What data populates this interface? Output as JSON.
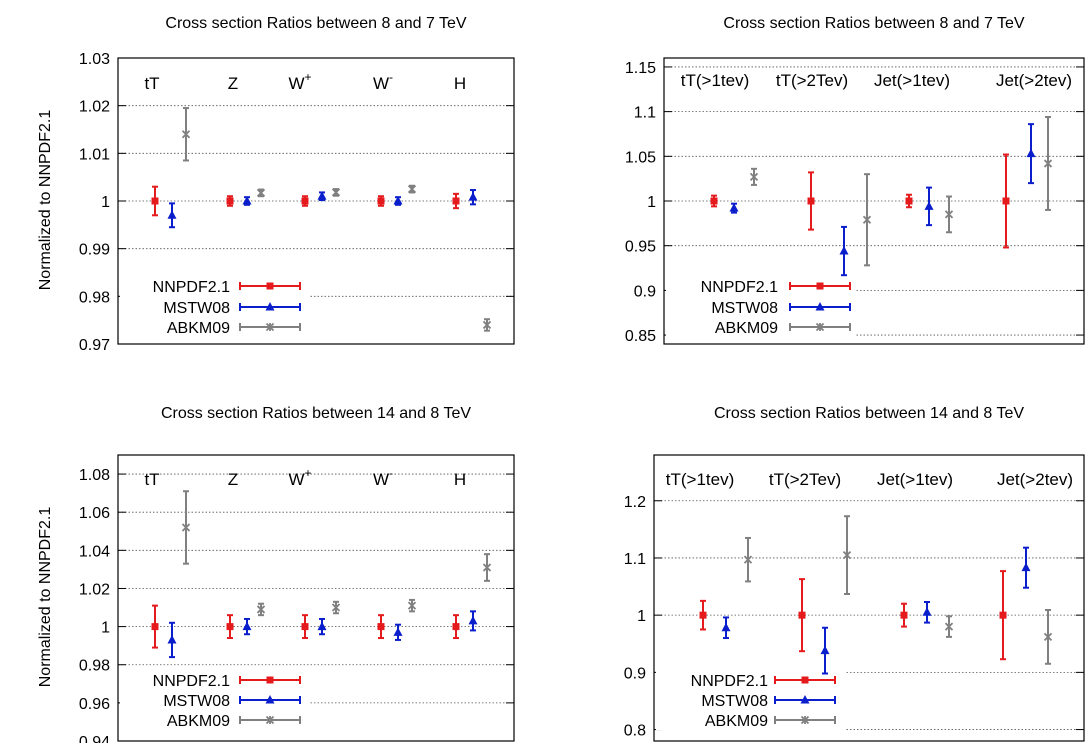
{
  "ylabel": "Normalized to NNPDF2.1",
  "series_style": [
    {
      "name": "NNPDF2.1",
      "color": "#e41a1c",
      "marker": "square"
    },
    {
      "name": "MSTW08",
      "color": "#0a1ecc",
      "marker": "triangle"
    },
    {
      "name": "ABKM09",
      "color": "#808080",
      "marker": "cross"
    }
  ],
  "chart_data": [
    {
      "type": "scatter",
      "title": "Cross section Ratios between 8 and 7 TeV",
      "ylim": [
        0.97,
        1.03
      ],
      "yticks": [
        "0.97",
        "0.98",
        "0.99",
        "1",
        "1.01",
        "1.02",
        "1.03"
      ],
      "grid": true,
      "legend": "bottom-left",
      "categories": [
        {
          "label": "tT",
          "sup": ""
        },
        {
          "label": "Z",
          "sup": ""
        },
        {
          "label": "W",
          "sup": "+"
        },
        {
          "label": "W",
          "sup": "-"
        },
        {
          "label": "H",
          "sup": ""
        }
      ],
      "series": [
        {
          "name": "NNPDF2.1",
          "values": [
            1.0,
            1.0,
            1.0,
            1.0,
            1.0
          ],
          "errors": [
            0.003,
            0.001,
            0.001,
            0.001,
            0.0015
          ]
        },
        {
          "name": "MSTW08",
          "values": [
            0.997,
            1.0,
            1.001,
            1.0,
            1.0008
          ],
          "errors": [
            0.0025,
            0.0008,
            0.0008,
            0.0008,
            0.0015
          ]
        },
        {
          "name": "ABKM09",
          "values": [
            1.014,
            1.0017,
            1.0018,
            1.0025,
            0.974
          ],
          "errors": [
            0.0055,
            0.0007,
            0.0007,
            0.0007,
            0.0012
          ]
        }
      ]
    },
    {
      "type": "scatter",
      "title": "Cross section Ratios between 8 and 7 TeV",
      "ylim": [
        0.84,
        1.16
      ],
      "yticks": [
        "0.85",
        "0.9",
        "0.95",
        "1",
        "1.05",
        "1.1",
        "1.15"
      ],
      "grid": true,
      "legend": "bottom-left",
      "categories": [
        {
          "label": "tT(>1tev)",
          "sup": ""
        },
        {
          "label": "tT(>2Tev)",
          "sup": ""
        },
        {
          "label": "Jet(>1tev)",
          "sup": ""
        },
        {
          "label": "Jet(>2tev)",
          "sup": ""
        }
      ],
      "series": [
        {
          "name": "NNPDF2.1",
          "values": [
            1.0,
            1.0,
            1.0,
            1.0
          ],
          "errors": [
            0.006,
            0.032,
            0.007,
            0.052
          ]
        },
        {
          "name": "MSTW08",
          "values": [
            0.992,
            0.944,
            0.994,
            1.053
          ],
          "errors": [
            0.005,
            0.027,
            0.021,
            0.033
          ]
        },
        {
          "name": "ABKM09",
          "values": [
            1.027,
            0.979,
            0.985,
            1.042
          ],
          "errors": [
            0.009,
            0.051,
            0.02,
            0.052
          ]
        }
      ]
    },
    {
      "type": "scatter",
      "title": "Cross section Ratios between 14 and 8 TeV",
      "ylim": [
        0.94,
        1.09
      ],
      "yticks": [
        "0.94",
        "0.96",
        "0.98",
        "1",
        "1.02",
        "1.04",
        "1.06",
        "1.08"
      ],
      "grid": true,
      "legend": "bottom-left",
      "categories": [
        {
          "label": "tT",
          "sup": ""
        },
        {
          "label": "Z",
          "sup": ""
        },
        {
          "label": "W",
          "sup": "+"
        },
        {
          "label": "W",
          "sup": "-"
        },
        {
          "label": "H",
          "sup": ""
        }
      ],
      "series": [
        {
          "name": "NNPDF2.1",
          "values": [
            1.0,
            1.0,
            1.0,
            1.0,
            1.0
          ],
          "errors": [
            0.011,
            0.006,
            0.006,
            0.006,
            0.006
          ]
        },
        {
          "name": "MSTW08",
          "values": [
            0.993,
            1.0,
            1.0,
            0.997,
            1.003
          ],
          "errors": [
            0.009,
            0.004,
            0.004,
            0.004,
            0.005
          ]
        },
        {
          "name": "ABKM09",
          "values": [
            1.052,
            1.009,
            1.01,
            1.011,
            1.031
          ],
          "errors": [
            0.019,
            0.003,
            0.003,
            0.003,
            0.007
          ]
        }
      ]
    },
    {
      "type": "scatter",
      "title": "Cross section Ratios between 14 and 8 TeV",
      "ylim": [
        0.78,
        1.28
      ],
      "yticks": [
        "0.8",
        "0.9",
        "1",
        "1.1",
        "1.2"
      ],
      "grid": true,
      "legend": "bottom-left",
      "categories": [
        {
          "label": "tT(>1tev)",
          "sup": ""
        },
        {
          "label": "tT(>2Tev)",
          "sup": ""
        },
        {
          "label": "Jet(>1tev)",
          "sup": ""
        },
        {
          "label": "Jet(>2tev)",
          "sup": ""
        }
      ],
      "series": [
        {
          "name": "NNPDF2.1",
          "values": [
            1.0,
            1.0,
            1.0,
            1.0
          ],
          "errors": [
            0.025,
            0.063,
            0.02,
            0.077
          ]
        },
        {
          "name": "MSTW08",
          "values": [
            0.978,
            0.938,
            1.005,
            1.083
          ],
          "errors": [
            0.018,
            0.04,
            0.018,
            0.035
          ]
        },
        {
          "name": "ABKM09",
          "values": [
            1.097,
            1.105,
            0.98,
            0.962
          ],
          "errors": [
            0.038,
            0.068,
            0.018,
            0.047
          ]
        }
      ]
    }
  ]
}
